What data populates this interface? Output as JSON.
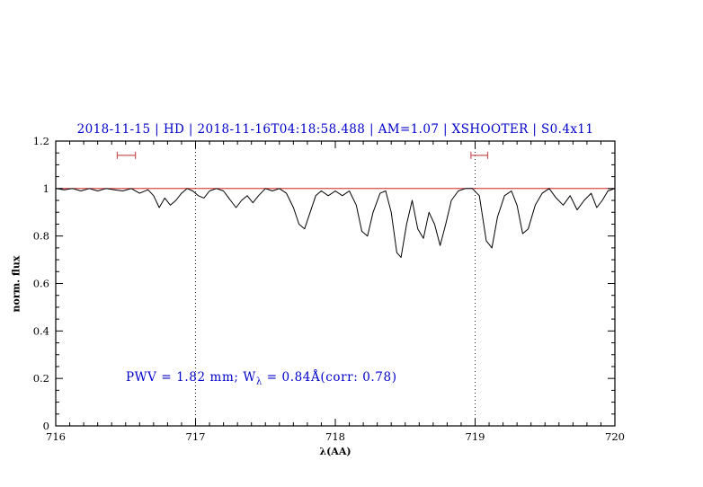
{
  "labels": {
    "title": "2018-11-15 | HD | 2018-11-16T04:18:58.488 | AM=1.07 | XSHOOTER | S0.4x11",
    "annotation_prefix": "PWV = 1.82 mm; W",
    "annotation_sub": "λ",
    "annotation_suffix": " = 0.84Å(corr: 0.78)"
  },
  "colors": {
    "title": "#0000cc",
    "annotation": "#0000cc",
    "spectrum": "#000000",
    "reference": "#cc0000",
    "marker": "#cc5555",
    "vline": "#222222"
  },
  "chart_data": {
    "type": "line",
    "title": "2018-11-15 | HD | 2018-11-16T04:18:58.488 | AM=1.07 | XSHOOTER | S0.4x11",
    "xlabel": "λ(AA)",
    "ylabel": "norm. flux",
    "xlim": [
      716,
      720
    ],
    "ylim": [
      0,
      1.2
    ],
    "xticks": [
      716,
      717,
      718,
      719,
      720
    ],
    "xtick_labels": [
      "716",
      "717",
      "718",
      "719",
      "720"
    ],
    "yticks": [
      0,
      0.2,
      0.4,
      0.6,
      0.8,
      1,
      1.2
    ],
    "ytick_labels": [
      "0",
      "0.2",
      "0.4",
      "0.6",
      "0.8",
      "1",
      "1.2"
    ],
    "grid": false,
    "reference_line_y": 1.0,
    "vlines": [
      717,
      719
    ],
    "range_markers": [
      {
        "x1": 716.44,
        "x2": 716.57,
        "y": 1.14
      },
      {
        "x1": 718.97,
        "x2": 719.09,
        "y": 1.14
      }
    ],
    "annotation": {
      "text": "PWV = 1.82 mm; Wλ = 0.84Å(corr: 0.78)",
      "x": 716.5,
      "y": 0.21
    },
    "series": [
      {
        "name": "normalized-spectrum",
        "x": [
          716.0,
          716.06,
          716.12,
          716.18,
          716.24,
          716.3,
          716.36,
          716.42,
          716.48,
          716.54,
          716.6,
          716.66,
          716.7,
          716.74,
          716.78,
          716.82,
          716.86,
          716.9,
          716.94,
          716.98,
          717.02,
          717.06,
          717.1,
          717.15,
          717.2,
          717.25,
          717.29,
          717.33,
          717.37,
          717.41,
          717.45,
          717.5,
          717.55,
          717.6,
          717.65,
          717.7,
          717.74,
          717.78,
          717.82,
          717.86,
          717.9,
          717.95,
          718.0,
          718.05,
          718.1,
          718.15,
          718.19,
          718.23,
          718.27,
          718.32,
          718.36,
          718.4,
          718.44,
          718.47,
          718.51,
          718.55,
          718.59,
          718.63,
          718.67,
          718.71,
          718.75,
          718.79,
          718.83,
          718.88,
          718.93,
          718.98,
          719.03,
          719.08,
          719.12,
          719.16,
          719.21,
          719.26,
          719.3,
          719.34,
          719.38,
          719.43,
          719.48,
          719.53,
          719.58,
          719.63,
          719.68,
          719.73,
          719.78,
          719.83,
          719.87,
          719.91,
          719.95,
          720.0
        ],
        "y": [
          1.0,
          0.995,
          1.0,
          0.99,
          1.0,
          0.99,
          1.0,
          0.995,
          0.99,
          1.0,
          0.98,
          0.995,
          0.97,
          0.92,
          0.96,
          0.93,
          0.95,
          0.98,
          1.0,
          0.99,
          0.97,
          0.96,
          0.99,
          1.0,
          0.99,
          0.95,
          0.92,
          0.95,
          0.97,
          0.94,
          0.97,
          1.0,
          0.99,
          1.0,
          0.98,
          0.92,
          0.85,
          0.83,
          0.9,
          0.97,
          0.99,
          0.97,
          0.99,
          0.97,
          0.99,
          0.93,
          0.82,
          0.8,
          0.9,
          0.98,
          0.99,
          0.9,
          0.73,
          0.71,
          0.85,
          0.95,
          0.83,
          0.79,
          0.9,
          0.85,
          0.76,
          0.85,
          0.95,
          0.99,
          1.0,
          1.0,
          0.97,
          0.78,
          0.75,
          0.88,
          0.97,
          0.99,
          0.93,
          0.81,
          0.83,
          0.93,
          0.98,
          1.0,
          0.96,
          0.93,
          0.97,
          0.91,
          0.95,
          0.98,
          0.92,
          0.95,
          0.99,
          1.0
        ]
      }
    ]
  }
}
